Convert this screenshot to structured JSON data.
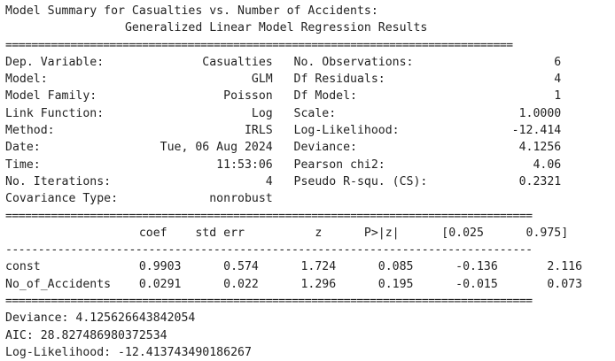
{
  "title_line1": "Model Summary for Casualties vs. Number of Accidents:",
  "title_line2": "                 Generalized Linear Model Regression Results",
  "sep_top": "==============================================================================",
  "info": [
    "Dep. Variable:              Casualties   No. Observations:                    6",
    "Model:                             GLM   Df Residuals:                        4",
    "Model Family:                  Poisson   Df Model:                            1",
    "Link Function:                     Log   Scale:                          1.0000",
    "Method:                           IRLS   Log-Likelihood:                -12.414",
    "Date:                 Tue, 06 Aug 2024   Deviance:                       4.1256",
    "Time:                         11:53:06   Pearson chi2:                     4.06",
    "No. Iterations:                      4   Pseudo R-squ. (CS):             0.2321",
    "Covariance Type:             nonrobust"
  ],
  "sep_mid": "=================================================================================",
  "coef_header": "                   coef    std err          z      P>|z|      [0.025      0.975]",
  "sep_dash": "---------------------------------------------------------------------------------",
  "coef_rows": [
    "const              0.9903      0.574      1.724      0.085      -0.136       2.116",
    "No_of_Accidents    0.0291      0.022      1.296      0.195      -0.015       0.073"
  ],
  "sep_bottom": "=================================================================================",
  "extra": [
    "Deviance: 4.125626643842054",
    "AIC: 28.827486980372534",
    "Log-Likelihood: -12.413743490186267"
  ]
}
